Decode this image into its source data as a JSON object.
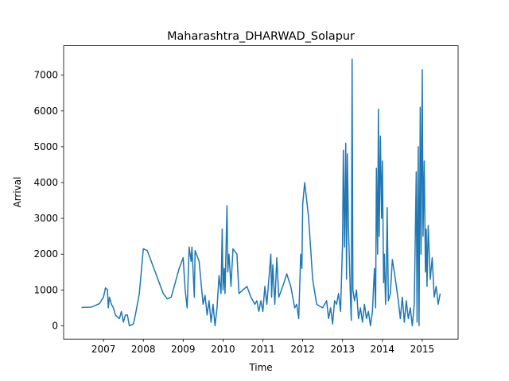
{
  "chart_data": {
    "type": "line",
    "title": "Maharashtra_DHARWAD_Solapur",
    "xlabel": "Time",
    "ylabel": "Arrival",
    "x": [
      2006.45,
      2006.7,
      2006.9,
      2007.0,
      2007.05,
      2007.1,
      2007.12,
      2007.15,
      2007.2,
      2007.25,
      2007.3,
      2007.4,
      2007.45,
      2007.5,
      2007.55,
      2007.6,
      2007.65,
      2007.75,
      2007.8,
      2007.9,
      2008.0,
      2008.1,
      2008.3,
      2008.5,
      2008.6,
      2008.7,
      2008.9,
      2009.0,
      2009.05,
      2009.1,
      2009.15,
      2009.2,
      2009.22,
      2009.28,
      2009.3,
      2009.4,
      2009.5,
      2009.55,
      2009.6,
      2009.65,
      2009.7,
      2009.75,
      2009.8,
      2009.85,
      2009.9,
      2009.95,
      2009.98,
      2010.0,
      2010.03,
      2010.05,
      2010.1,
      2010.12,
      2010.15,
      2010.2,
      2010.25,
      2010.35,
      2010.4,
      2010.5,
      2010.6,
      2010.7,
      2010.8,
      2010.85,
      2010.9,
      2010.95,
      2011.0,
      2011.05,
      2011.1,
      2011.15,
      2011.2,
      2011.22,
      2011.25,
      2011.3,
      2011.35,
      2011.4,
      2011.5,
      2011.6,
      2011.7,
      2011.8,
      2011.85,
      2011.9,
      2011.95,
      2011.98,
      2012.0,
      2012.05,
      2012.15,
      2012.25,
      2012.35,
      2012.5,
      2012.6,
      2012.65,
      2012.7,
      2012.75,
      2012.8,
      2012.85,
      2012.9,
      2012.95,
      2013.0,
      2013.02,
      2013.05,
      2013.08,
      2013.1,
      2013.12,
      2013.15,
      2013.2,
      2013.22,
      2013.24,
      2013.26,
      2013.3,
      2013.35,
      2013.4,
      2013.45,
      2013.5,
      2013.55,
      2013.6,
      2013.65,
      2013.7,
      2013.75,
      2013.8,
      2013.83,
      2013.85,
      2013.88,
      2013.9,
      2013.92,
      2013.95,
      2013.98,
      2014.0,
      2014.03,
      2014.05,
      2014.08,
      2014.1,
      2014.12,
      2014.15,
      2014.2,
      2014.25,
      2014.3,
      2014.4,
      2014.45,
      2014.5,
      2014.55,
      2014.6,
      2014.65,
      2014.7,
      2014.75,
      2014.8,
      2014.85,
      2014.87,
      2014.9,
      2014.92,
      2014.95,
      2014.97,
      2015.0,
      2015.02,
      2015.05,
      2015.08,
      2015.1,
      2015.12,
      2015.15,
      2015.2,
      2015.25,
      2015.3,
      2015.35,
      2015.4,
      2015.45
    ],
    "series": [
      {
        "color": "#1f77b4",
        "values": [
          510,
          520,
          620,
          800,
          1060,
          1000,
          500,
          800,
          600,
          500,
          300,
          200,
          400,
          100,
          300,
          300,
          0,
          50,
          300,
          900,
          2150,
          2100,
          1500,
          900,
          750,
          800,
          1600,
          1900,
          1000,
          500,
          2200,
          1800,
          2200,
          800,
          2100,
          1800,
          600,
          850,
          300,
          700,
          100,
          600,
          0,
          500,
          1400,
          900,
          2700,
          1000,
          1600,
          900,
          3350,
          1500,
          2000,
          1100,
          2150,
          2000,
          900,
          1000,
          1100,
          800,
          600,
          700,
          400,
          700,
          400,
          1100,
          600,
          1300,
          2000,
          800,
          1700,
          600,
          1900,
          800,
          1100,
          1450,
          1100,
          500,
          600,
          200,
          2000,
          1600,
          3400,
          4000,
          3000,
          1300,
          600,
          500,
          700,
          200,
          500,
          50,
          700,
          600,
          900,
          400,
          2300,
          4900,
          2200,
          5100,
          1300,
          4800,
          2700,
          700,
          150,
          7450,
          1000,
          700,
          1000,
          200,
          500,
          100,
          600,
          200,
          400,
          0,
          400,
          1600,
          500,
          4400,
          2000,
          6050,
          2500,
          5300,
          3000,
          4600,
          1200,
          2000,
          600,
          1500,
          3300,
          700,
          900,
          1850,
          1500,
          700,
          200,
          800,
          100,
          700,
          200,
          500,
          0,
          600,
          4300,
          100,
          5000,
          0,
          6100,
          2000,
          7150,
          2500,
          4600,
          1500,
          2700,
          1100,
          2800,
          1300,
          1900,
          800,
          1100,
          600,
          900
        ]
      }
    ],
    "xlim": [
      2006.0,
      2015.9
    ],
    "xticks": [
      2007,
      2008,
      2009,
      2010,
      2011,
      2012,
      2013,
      2014,
      2015
    ],
    "ylim": [
      -372,
      7822
    ],
    "yticks": [
      0,
      1000,
      2000,
      3000,
      4000,
      5000,
      6000,
      7000
    ]
  }
}
